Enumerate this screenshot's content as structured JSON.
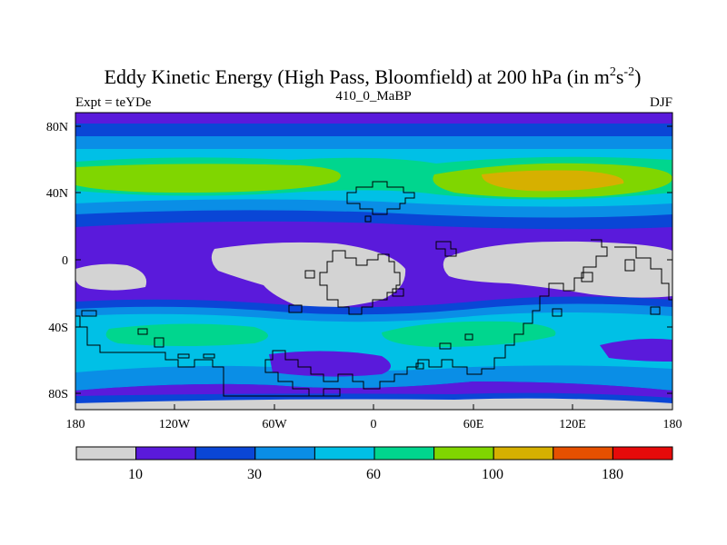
{
  "title": {
    "main": "Eddy Kinetic Energy (High Pass, Bloomfield) at 200 hPa (in m",
    "unit_m_exp": "2",
    "unit_s": "s",
    "unit_s_exp": "-2",
    "close": ")"
  },
  "left_label": "Expt = teYDe",
  "center_label": "410_0_MaBP",
  "right_label": "DJF",
  "x_ticks": [
    "180",
    "120W",
    "60W",
    "0",
    "60E",
    "120E",
    "180"
  ],
  "y_ticks": [
    "80N",
    "40N",
    "0",
    "40S",
    "80S"
  ],
  "colorbar": {
    "labels": [
      "10",
      "30",
      "60",
      "100",
      "180"
    ],
    "colors": [
      "#d3d3d3",
      "#5a1adb",
      "#0a46d6",
      "#0a8ee6",
      "#00c0e6",
      "#00d68e",
      "#80d600",
      "#d6b000",
      "#e65000",
      "#e60a0a"
    ]
  },
  "palette": {
    "land_gray": "#d3d3d3",
    "level1": "#5a1adb",
    "level2": "#0a46d6",
    "level3": "#0a8ee6",
    "level4": "#00c0e6",
    "level5": "#00d68e",
    "level6": "#80d600",
    "level7": "#d6b000"
  }
}
